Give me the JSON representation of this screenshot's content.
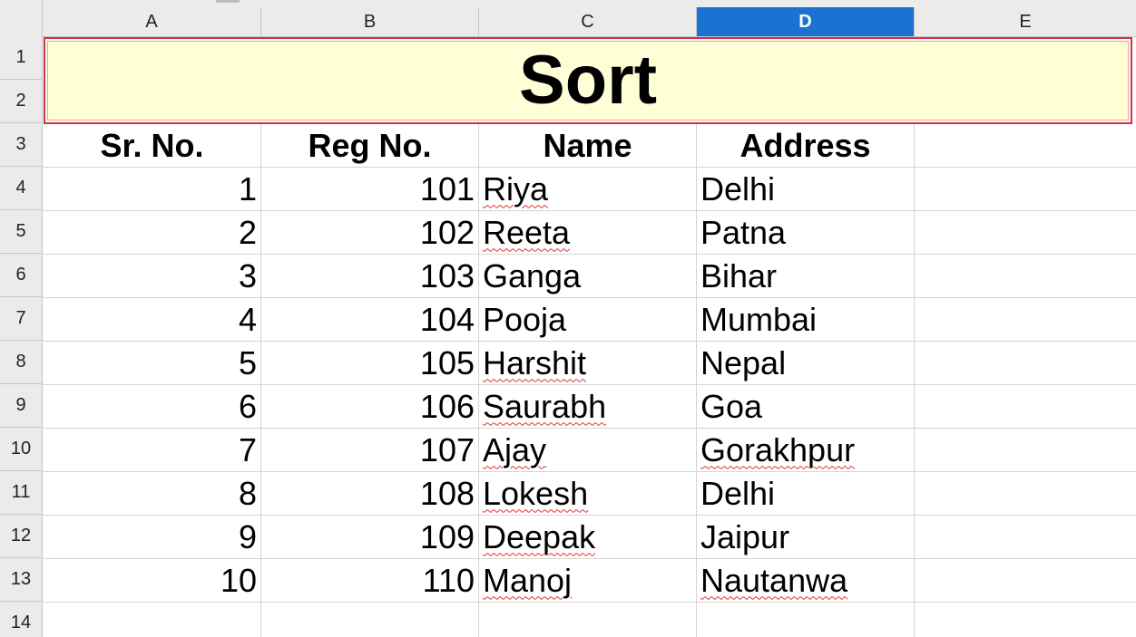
{
  "columns": [
    "A",
    "B",
    "C",
    "D",
    "E"
  ],
  "selected_column": "D",
  "row_numbers": [
    "1",
    "2",
    "3",
    "4",
    "5",
    "6",
    "7",
    "8",
    "9",
    "10",
    "11",
    "12",
    "13",
    "14"
  ],
  "title": "Sort",
  "headers": {
    "sr_no": "Sr. No.",
    "reg_no": "Reg No.",
    "name": "Name",
    "address": "Address"
  },
  "rows": [
    {
      "sr": "1",
      "reg": "101",
      "name": "Riya",
      "address": "Delhi",
      "name_flagged": true,
      "address_flagged": false
    },
    {
      "sr": "2",
      "reg": "102",
      "name": "Reeta",
      "address": "Patna",
      "name_flagged": true,
      "address_flagged": false
    },
    {
      "sr": "3",
      "reg": "103",
      "name": "Ganga",
      "address": "Bihar",
      "name_flagged": false,
      "address_flagged": false
    },
    {
      "sr": "4",
      "reg": "104",
      "name": "Pooja",
      "address": "Mumbai",
      "name_flagged": false,
      "address_flagged": false
    },
    {
      "sr": "5",
      "reg": "105",
      "name": "Harshit",
      "address": "Nepal",
      "name_flagged": true,
      "address_flagged": false
    },
    {
      "sr": "6",
      "reg": "106",
      "name": "Saurabh",
      "address": "Goa",
      "name_flagged": true,
      "address_flagged": false
    },
    {
      "sr": "7",
      "reg": "107",
      "name": "Ajay",
      "address": "Gorakhpur",
      "name_flagged": true,
      "address_flagged": true
    },
    {
      "sr": "8",
      "reg": "108",
      "name": "Lokesh",
      "address": "Delhi",
      "name_flagged": true,
      "address_flagged": false
    },
    {
      "sr": "9",
      "reg": "109",
      "name": "Deepak",
      "address": "Jaipur",
      "name_flagged": true,
      "address_flagged": false
    },
    {
      "sr": "10",
      "reg": "110",
      "name": "Manoj",
      "address": "Nautanwa",
      "name_flagged": true,
      "address_flagged": true
    }
  ],
  "colors": {
    "title_fill": "#ffffd7",
    "title_border": "#c9305a",
    "selected_header": "#1a73d1",
    "spell_underline": "#e03030"
  }
}
